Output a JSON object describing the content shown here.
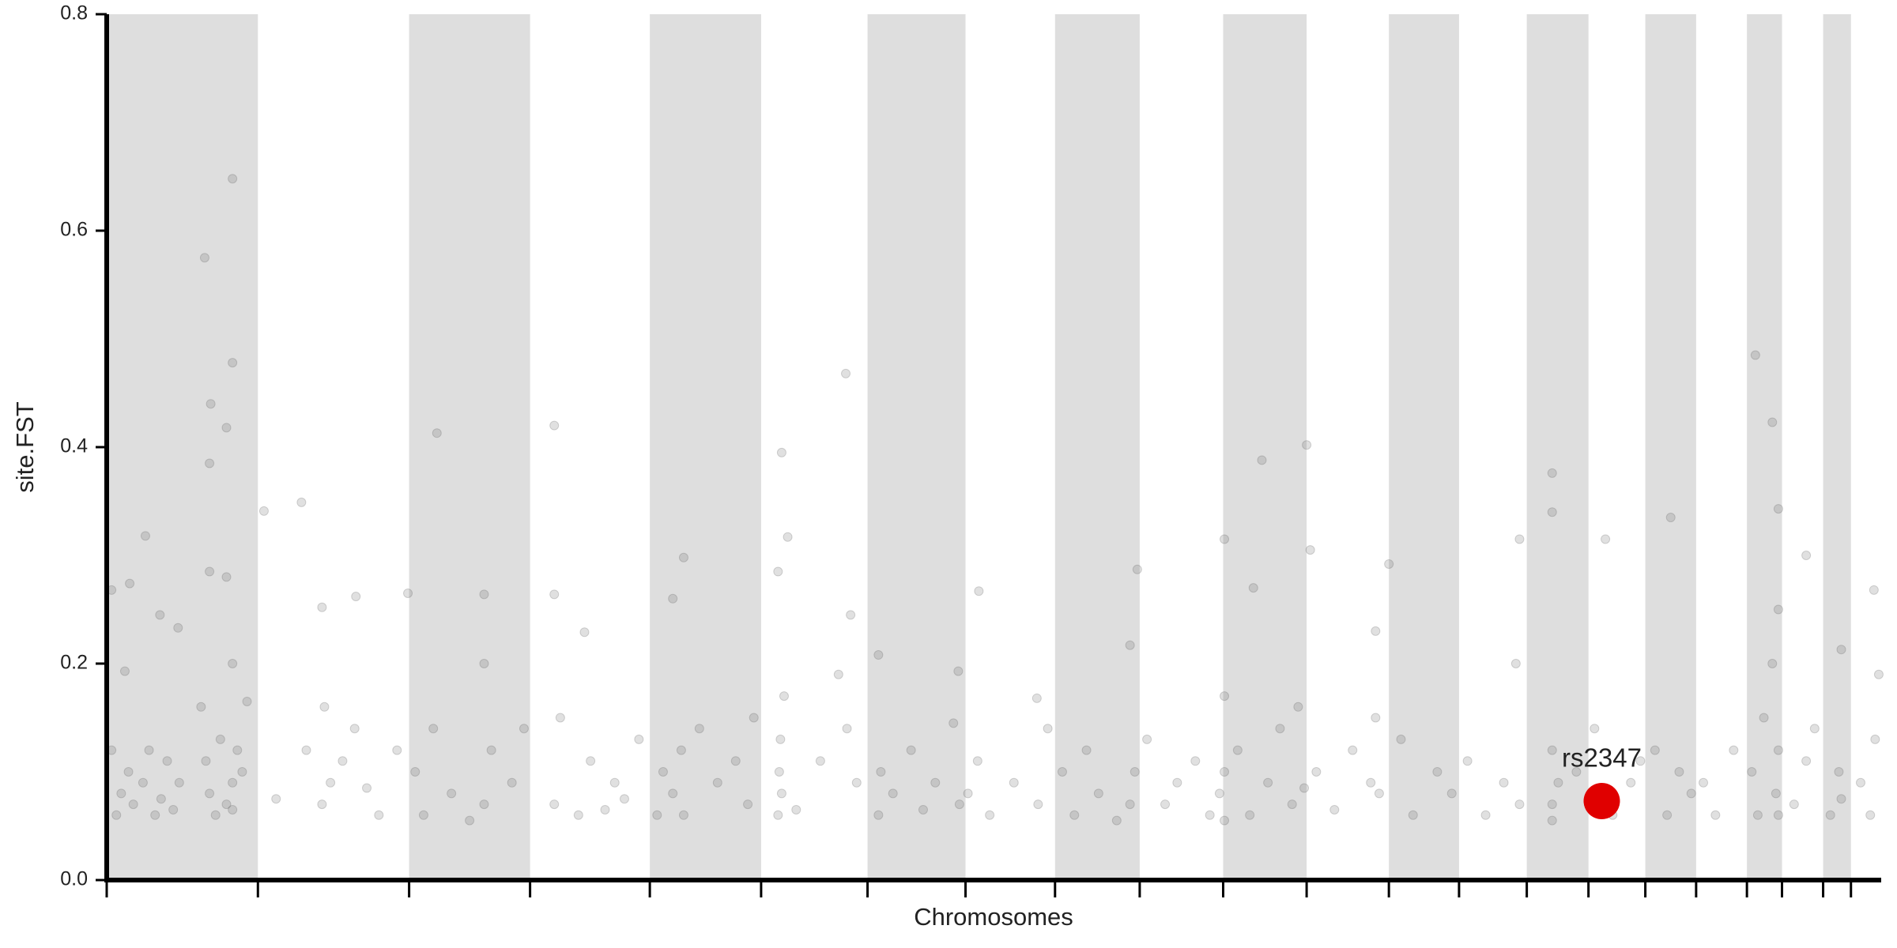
{
  "chart_data": {
    "type": "scatter",
    "y_label": "site.FST",
    "x_label": "Chromosomes",
    "xlim": [
      0,
      1467
    ],
    "ylim": [
      0,
      0.8
    ],
    "yticks": [
      {
        "value": 0,
        "label": "0.0"
      },
      0.2,
      0.4,
      0.6,
      0.8
    ],
    "xticks": [
      0,
      125,
      250,
      350,
      449,
      541,
      629,
      710,
      784,
      854,
      923,
      992,
      1060,
      1118,
      1174,
      1225,
      1272,
      1314,
      1356,
      1385,
      1419,
      1442
    ],
    "shade_alternate": true,
    "shade_color": "#dedede",
    "color": "#555555",
    "opacity": 0.18,
    "x": [
      104,
      81,
      104,
      86,
      99,
      85,
      85,
      99,
      32,
      19,
      4,
      44,
      59,
      15,
      130,
      161,
      178,
      206,
      249,
      273,
      312,
      370,
      370,
      395,
      468,
      477,
      558,
      563,
      555,
      611,
      615,
      638,
      704,
      721,
      769,
      852,
      846,
      924,
      955,
      948,
      992,
      995,
      1060,
      1049,
      1168,
      1195,
      1195,
      1239,
      1293,
      1363,
      1377,
      1382,
      1405,
      1461,
      1434,
      4,
      8,
      12,
      18,
      22,
      30,
      35,
      40,
      45,
      50,
      55,
      60,
      78,
      82,
      85,
      90,
      94,
      99,
      104,
      108,
      104,
      104,
      112,
      116,
      140,
      165,
      178,
      180,
      185,
      195,
      205,
      215,
      225,
      240,
      255,
      262,
      270,
      285,
      300,
      312,
      312,
      318,
      335,
      345,
      370,
      375,
      390,
      400,
      412,
      420,
      428,
      440,
      455,
      460,
      468,
      475,
      477,
      490,
      505,
      520,
      530,
      535,
      555,
      556,
      557,
      558,
      560,
      570,
      590,
      605,
      612,
      620,
      638,
      640,
      650,
      665,
      675,
      685,
      700,
      705,
      712,
      720,
      730,
      750,
      770,
      778,
      790,
      800,
      810,
      820,
      835,
      846,
      850,
      860,
      875,
      885,
      900,
      912,
      920,
      924,
      924,
      924,
      935,
      945,
      960,
      970,
      980,
      985,
      990,
      1000,
      1015,
      1030,
      1045,
      1049,
      1052,
      1070,
      1080,
      1100,
      1112,
      1125,
      1140,
      1155,
      1165,
      1168,
      1195,
      1195,
      1195,
      1200,
      1215,
      1230,
      1245,
      1260,
      1268,
      1280,
      1290,
      1300,
      1310,
      1320,
      1330,
      1345,
      1360,
      1365,
      1370,
      1377,
      1380,
      1382,
      1382,
      1382,
      1395,
      1405,
      1412,
      1425,
      1432,
      1434,
      1450,
      1458,
      1462,
      1465
    ],
    "values": [
      0.648,
      0.575,
      0.478,
      0.44,
      0.418,
      0.385,
      0.285,
      0.28,
      0.318,
      0.274,
      0.268,
      0.245,
      0.233,
      0.193,
      0.341,
      0.349,
      0.252,
      0.262,
      0.265,
      0.413,
      0.264,
      0.42,
      0.264,
      0.229,
      0.26,
      0.298,
      0.395,
      0.317,
      0.285,
      0.468,
      0.245,
      0.208,
      0.193,
      0.267,
      0.168,
      0.287,
      0.217,
      0.315,
      0.388,
      0.27,
      0.402,
      0.305,
      0.292,
      0.23,
      0.315,
      0.376,
      0.34,
      0.315,
      0.335,
      0.485,
      0.423,
      0.343,
      0.3,
      0.268,
      0.213,
      0.12,
      0.06,
      0.08,
      0.1,
      0.07,
      0.09,
      0.12,
      0.06,
      0.075,
      0.11,
      0.065,
      0.09,
      0.16,
      0.11,
      0.08,
      0.06,
      0.13,
      0.07,
      0.09,
      0.12,
      0.065,
      0.2,
      0.1,
      0.165,
      0.075,
      0.12,
      0.07,
      0.16,
      0.09,
      0.11,
      0.14,
      0.085,
      0.06,
      0.12,
      0.1,
      0.06,
      0.14,
      0.08,
      0.055,
      0.2,
      0.07,
      0.12,
      0.09,
      0.14,
      0.07,
      0.15,
      0.06,
      0.11,
      0.065,
      0.09,
      0.075,
      0.13,
      0.06,
      0.1,
      0.08,
      0.12,
      0.06,
      0.14,
      0.09,
      0.11,
      0.07,
      0.15,
      0.06,
      0.1,
      0.13,
      0.08,
      0.17,
      0.065,
      0.11,
      0.19,
      0.14,
      0.09,
      0.06,
      0.1,
      0.08,
      0.12,
      0.065,
      0.09,
      0.145,
      0.07,
      0.08,
      0.11,
      0.06,
      0.09,
      0.07,
      0.14,
      0.1,
      0.06,
      0.12,
      0.08,
      0.055,
      0.07,
      0.1,
      0.13,
      0.07,
      0.09,
      0.11,
      0.06,
      0.08,
      0.17,
      0.055,
      0.1,
      0.12,
      0.06,
      0.09,
      0.14,
      0.07,
      0.16,
      0.085,
      0.1,
      0.065,
      0.12,
      0.09,
      0.15,
      0.08,
      0.13,
      0.06,
      0.1,
      0.08,
      0.11,
      0.06,
      0.09,
      0.2,
      0.07,
      0.07,
      0.12,
      0.055,
      0.09,
      0.1,
      0.14,
      0.06,
      0.09,
      0.11,
      0.12,
      0.06,
      0.1,
      0.08,
      0.09,
      0.06,
      0.12,
      0.1,
      0.06,
      0.15,
      0.2,
      0.08,
      0.12,
      0.06,
      0.25,
      0.07,
      0.11,
      0.14,
      0.06,
      0.1,
      0.075,
      0.09,
      0.06,
      0.13,
      0.19
    ],
    "highlight": {
      "label": "rs2347",
      "x": 1236,
      "value": 0.073,
      "color": "#e00000"
    }
  }
}
